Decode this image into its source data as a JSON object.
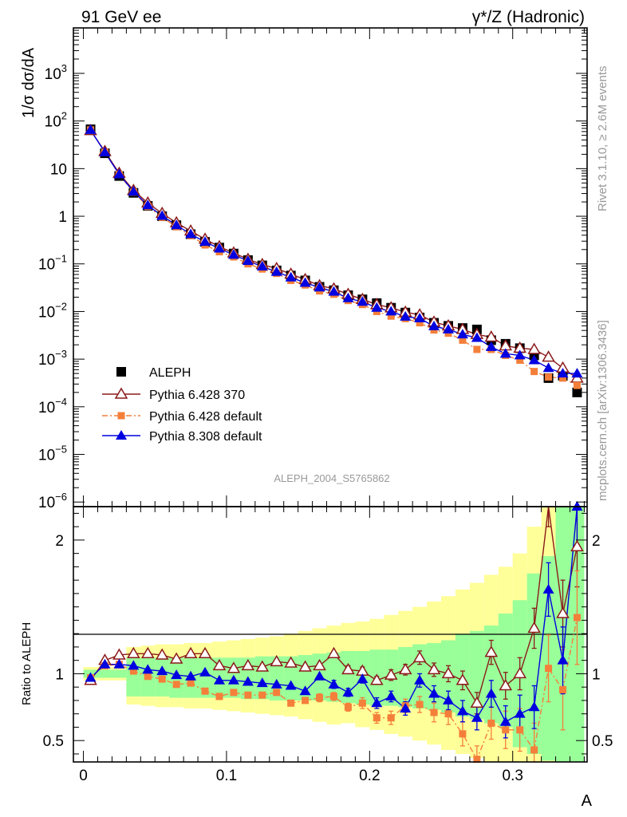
{
  "header": {
    "left": "91 GeV ee",
    "right": "γ*/Z (Hadronic)"
  },
  "side_labels": {
    "rivet": "Rivet 3.1.10, ≥ 2.6M events",
    "site": "mcplots.cern.ch [arXiv:1306.3436]"
  },
  "analysis_id": "ALEPH_2004_S5765862",
  "chart_data": [
    {
      "type": "scatter",
      "panel": "main",
      "ylabel": "1/σ  dσ/dA",
      "yscale": "log",
      "ylim": [
        8e-07,
        9000
      ],
      "xlim": [
        -0.007,
        0.352
      ],
      "x_ticks": [
        "0",
        "0.1",
        "0.2",
        "0.3"
      ],
      "y_ticks": [
        "10^-6",
        "10^-5",
        "10^-4",
        "10^-3",
        "10^-2",
        "10^-1",
        "1",
        "10",
        "10^2",
        "10^3"
      ],
      "x": [
        0.005,
        0.015,
        0.025,
        0.035,
        0.045,
        0.055,
        0.065,
        0.075,
        0.085,
        0.095,
        0.105,
        0.115,
        0.125,
        0.135,
        0.145,
        0.155,
        0.165,
        0.175,
        0.185,
        0.195,
        0.205,
        0.215,
        0.225,
        0.235,
        0.245,
        0.255,
        0.265,
        0.275,
        0.285,
        0.295,
        0.305,
        0.315,
        0.325,
        0.335,
        0.345
      ],
      "legend_placement": "bottom-left",
      "series": [
        {
          "name": "ALEPH",
          "color": "#000000",
          "marker": "square",
          "values": [
            67,
            21,
            7,
            3.1,
            1.65,
            1.0,
            0.65,
            0.42,
            0.29,
            0.22,
            0.165,
            0.12,
            0.093,
            0.073,
            0.057,
            0.045,
            0.033,
            0.028,
            0.022,
            0.018,
            0.015,
            0.012,
            0.0095,
            0.0075,
            0.0058,
            0.005,
            0.0045,
            0.0042,
            0.0025,
            0.0021,
            0.0017,
            0.0012,
            0.0004,
            0.00045,
            0.0002
          ]
        },
        {
          "name": "Pythia 6.428 370",
          "color": "#8b1a1a",
          "marker": "triangle-open",
          "values": [
            63,
            23,
            8,
            3.5,
            1.9,
            1.15,
            0.73,
            0.49,
            0.33,
            0.23,
            0.17,
            0.125,
            0.097,
            0.08,
            0.061,
            0.047,
            0.035,
            0.03,
            0.023,
            0.018,
            0.014,
            0.012,
            0.0097,
            0.0085,
            0.006,
            0.005,
            0.0042,
            0.0033,
            0.0029,
            0.0019,
            0.0017,
            0.0016,
            0.0011,
            0.00065,
            0.0004
          ]
        },
        {
          "name": "Pythia 6.428 default",
          "color": "#f47f3a",
          "marker": "square-small",
          "dash": "7,3,2,3",
          "values": [
            65,
            22,
            7.5,
            3.2,
            1.6,
            0.95,
            0.6,
            0.39,
            0.25,
            0.18,
            0.14,
            0.1,
            0.078,
            0.063,
            0.045,
            0.036,
            0.027,
            0.023,
            0.017,
            0.014,
            0.01,
            0.008,
            0.0071,
            0.0058,
            0.0041,
            0.0035,
            0.0025,
            0.0016,
            0.0016,
            0.0012,
            0.00095,
            0.00055,
            0.00042,
            0.0004,
            0.00028
          ]
        },
        {
          "name": "Pythia 8.308 default",
          "color": "#0000e0",
          "marker": "triangle",
          "values": [
            65,
            22,
            7.6,
            3.3,
            1.7,
            1.02,
            0.65,
            0.42,
            0.29,
            0.21,
            0.155,
            0.115,
            0.088,
            0.068,
            0.052,
            0.04,
            0.032,
            0.026,
            0.019,
            0.016,
            0.012,
            0.01,
            0.0078,
            0.0072,
            0.0049,
            0.0042,
            0.0033,
            0.0028,
            0.0018,
            0.0013,
            0.0012,
            0.00095,
            0.00065,
            0.0005,
            0.0005
          ]
        }
      ]
    },
    {
      "type": "line",
      "panel": "ratio",
      "xlabel": "A",
      "ylabel": "Ratio to ALEPH",
      "ylim": [
        0.34,
        2.25
      ],
      "y_ticks": [
        "0.5",
        "1",
        "2"
      ],
      "x_ticks": [
        "0",
        "0.1",
        "0.2",
        "0.3"
      ],
      "band_edges": [
        0.0,
        0.03,
        0.04,
        0.05,
        0.06,
        0.07,
        0.08,
        0.09,
        0.1,
        0.11,
        0.12,
        0.13,
        0.14,
        0.15,
        0.16,
        0.17,
        0.18,
        0.19,
        0.2,
        0.21,
        0.22,
        0.23,
        0.24,
        0.25,
        0.26,
        0.27,
        0.28,
        0.29,
        0.3,
        0.31,
        0.32,
        0.33,
        0.34,
        0.35
      ],
      "band_green": [
        [
          0.97,
          1.03
        ],
        [
          0.83,
          1.12
        ],
        [
          0.83,
          1.12
        ],
        [
          0.83,
          1.12
        ],
        [
          0.82,
          1.12
        ],
        [
          0.82,
          1.12
        ],
        [
          0.82,
          1.12
        ],
        [
          0.82,
          1.12
        ],
        [
          0.82,
          1.12
        ],
        [
          0.81,
          1.12
        ],
        [
          0.81,
          1.13
        ],
        [
          0.8,
          1.13
        ],
        [
          0.8,
          1.13
        ],
        [
          0.8,
          1.14
        ],
        [
          0.8,
          1.15
        ],
        [
          0.79,
          1.16
        ],
        [
          0.78,
          1.17
        ],
        [
          0.77,
          1.17
        ],
        [
          0.76,
          1.18
        ],
        [
          0.76,
          1.18
        ],
        [
          0.75,
          1.2
        ],
        [
          0.74,
          1.22
        ],
        [
          0.73,
          1.23
        ],
        [
          0.71,
          1.25
        ],
        [
          0.68,
          1.3
        ],
        [
          0.66,
          1.32
        ],
        [
          0.63,
          1.36
        ],
        [
          0.6,
          1.45
        ],
        [
          0.45,
          1.55
        ],
        [
          0.4,
          1.75
        ],
        [
          0.35,
          1.88
        ],
        [
          0.34,
          2.25
        ],
        [
          0.34,
          2.25
        ]
      ],
      "band_yellow": [
        [
          0.95,
          1.05
        ],
        [
          0.77,
          1.2
        ],
        [
          0.76,
          1.21
        ],
        [
          0.75,
          1.22
        ],
        [
          0.75,
          1.22
        ],
        [
          0.74,
          1.23
        ],
        [
          0.74,
          1.23
        ],
        [
          0.73,
          1.24
        ],
        [
          0.72,
          1.25
        ],
        [
          0.71,
          1.26
        ],
        [
          0.7,
          1.27
        ],
        [
          0.69,
          1.28
        ],
        [
          0.68,
          1.3
        ],
        [
          0.66,
          1.32
        ],
        [
          0.64,
          1.34
        ],
        [
          0.62,
          1.36
        ],
        [
          0.63,
          1.38
        ],
        [
          0.6,
          1.39
        ],
        [
          0.58,
          1.41
        ],
        [
          0.55,
          1.44
        ],
        [
          0.53,
          1.47
        ],
        [
          0.5,
          1.5
        ],
        [
          0.47,
          1.54
        ],
        [
          0.43,
          1.58
        ],
        [
          0.4,
          1.63
        ],
        [
          0.37,
          1.68
        ],
        [
          0.34,
          1.74
        ],
        [
          0.34,
          1.8
        ],
        [
          0.34,
          1.9
        ],
        [
          0.34,
          2.1
        ],
        [
          0.34,
          2.25
        ],
        [
          0.34,
          2.25
        ],
        [
          0.34,
          2.25
        ]
      ],
      "series": [
        {
          "name": "Pythia 6.428 370",
          "color": "#8b1a1a",
          "values": [
            0.95,
            1.1,
            1.14,
            1.15,
            1.15,
            1.14,
            1.11,
            1.15,
            1.15,
            1.06,
            1.04,
            1.06,
            1.05,
            1.09,
            1.08,
            1.05,
            1.06,
            1.15,
            1.03,
            1.02,
            0.95,
            0.99,
            1.03,
            1.12,
            1.03,
            1.0,
            0.95,
            0.78,
            1.16,
            0.91,
            1.0,
            1.34,
            2.3,
            1.45,
            1.95
          ],
          "errors": [
            0.01,
            0.01,
            0.01,
            0.01,
            0.01,
            0.01,
            0.01,
            0.01,
            0.01,
            0.01,
            0.01,
            0.01,
            0.02,
            0.02,
            0.02,
            0.02,
            0.02,
            0.02,
            0.03,
            0.03,
            0.03,
            0.04,
            0.04,
            0.05,
            0.05,
            0.06,
            0.07,
            0.08,
            0.09,
            0.1,
            0.12,
            0.15,
            0.2,
            0.25,
            0.3
          ]
        },
        {
          "name": "Pythia 6.428 default",
          "color": "#f47f3a",
          "values": [
            0.97,
            1.06,
            1.07,
            1.02,
            0.98,
            0.96,
            0.92,
            0.93,
            0.87,
            0.83,
            0.86,
            0.84,
            0.84,
            0.86,
            0.78,
            0.8,
            0.82,
            0.83,
            0.75,
            0.78,
            0.67,
            0.67,
            0.76,
            0.77,
            0.71,
            0.7,
            0.55,
            0.36,
            0.63,
            0.58,
            0.58,
            0.43,
            1.04,
            0.88,
            1.42
          ],
          "errors": [
            0.01,
            0.01,
            0.01,
            0.01,
            0.01,
            0.01,
            0.01,
            0.01,
            0.01,
            0.01,
            0.01,
            0.02,
            0.02,
            0.02,
            0.02,
            0.02,
            0.03,
            0.03,
            0.03,
            0.04,
            0.04,
            0.05,
            0.05,
            0.06,
            0.07,
            0.08,
            0.09,
            0.1,
            0.12,
            0.14,
            0.16,
            0.2,
            0.25,
            0.3,
            0.35
          ]
        },
        {
          "name": "Pythia 8.308 default",
          "color": "#0000e0",
          "values": [
            0.97,
            1.07,
            1.07,
            1.06,
            1.03,
            1.02,
            0.99,
            0.98,
            1.01,
            0.95,
            0.95,
            0.94,
            0.93,
            0.92,
            0.91,
            0.87,
            0.98,
            0.92,
            0.86,
            0.96,
            0.78,
            0.83,
            0.74,
            0.95,
            0.85,
            0.8,
            0.72,
            0.67,
            0.85,
            0.64,
            0.7,
            0.75,
            1.63,
            1.1,
            2.25
          ],
          "errors": [
            0.01,
            0.01,
            0.01,
            0.01,
            0.01,
            0.01,
            0.01,
            0.01,
            0.01,
            0.01,
            0.01,
            0.01,
            0.02,
            0.02,
            0.02,
            0.02,
            0.02,
            0.03,
            0.03,
            0.03,
            0.04,
            0.04,
            0.05,
            0.05,
            0.06,
            0.07,
            0.08,
            0.09,
            0.1,
            0.12,
            0.14,
            0.16,
            0.2,
            0.25,
            0.3
          ]
        }
      ]
    }
  ]
}
